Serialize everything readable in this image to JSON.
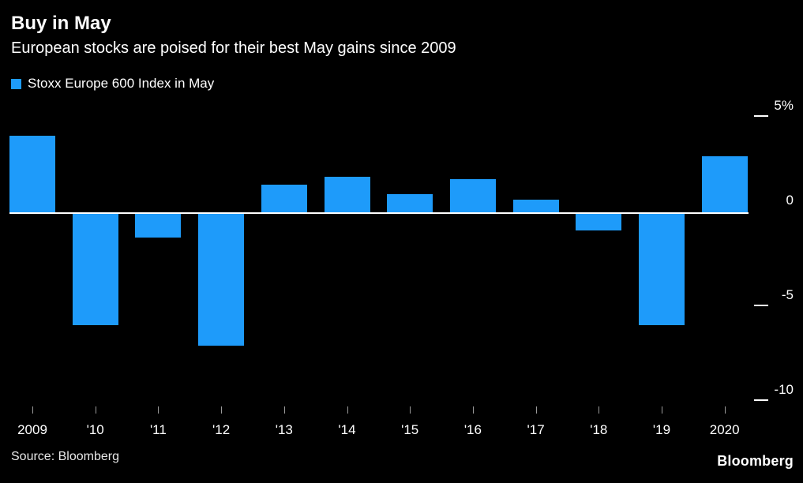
{
  "header": {
    "title": "Buy in May",
    "subtitle": "European stocks are poised for their best May gains since 2009"
  },
  "legend": {
    "label": "Stoxx Europe 600 Index in May"
  },
  "footer": {
    "source": "Source: Bloomberg",
    "brand": "Bloomberg"
  },
  "chart_data": {
    "type": "bar",
    "title": "Buy in May",
    "subtitle": "European stocks are poised for their best May gains since 2009",
    "series_name": "Stoxx Europe 600 Index in May",
    "categories": [
      "2009",
      "'10",
      "'11",
      "'12",
      "'13",
      "'14",
      "'15",
      "'16",
      "'17",
      "'18",
      "'19",
      "2020"
    ],
    "values": [
      4.1,
      -5.9,
      -1.3,
      -7.0,
      1.5,
      1.9,
      1.0,
      1.8,
      0.7,
      -0.9,
      -5.9,
      3.0
    ],
    "xlabel": "",
    "ylabel": "%",
    "ylim": [
      -10,
      5
    ],
    "yticks": [
      {
        "label": "5%",
        "value": 5,
        "dash": true
      },
      {
        "label": "0",
        "value": 0,
        "dash": false
      },
      {
        "label": "-5",
        "value": -5,
        "dash": true
      },
      {
        "label": "-10",
        "value": -10,
        "dash": true
      }
    ],
    "bar_color": "#1e9bfa",
    "axis_color": "#ffffff",
    "background_color": "#000000",
    "grid": false,
    "legend_position": "top-left"
  }
}
